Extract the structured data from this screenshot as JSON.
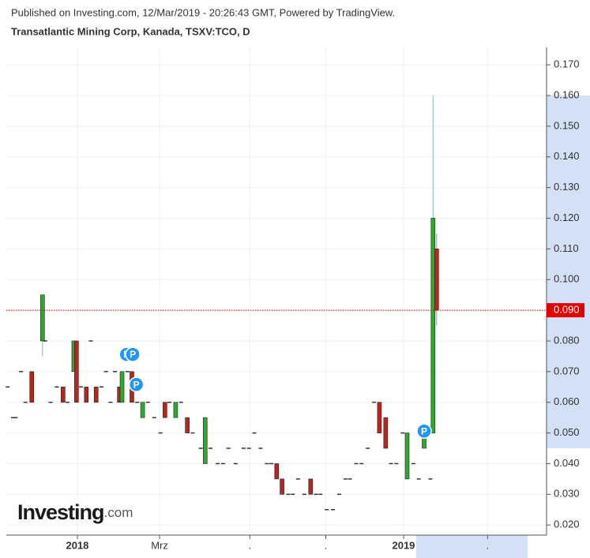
{
  "header": {
    "published": "Published on Investing.com, 12/Mar/2019 - 20:26:43 GMT, Powered by TradingView.",
    "symbol": "Transatlantic Mining Corp, Kanada, TSXV:TCO, D"
  },
  "logo": {
    "name": "Investing",
    "suffix": ".com"
  },
  "chart_data": {
    "type": "candlestick",
    "xlim": [
      -79.5,
      525
    ],
    "ylim": [
      0.0167,
      0.1757
    ],
    "xticks": [
      {
        "value": 0,
        "label": "2018"
      },
      {
        "value": 92,
        "label": "Mrz"
      },
      {
        "value": 193,
        "label": "."
      },
      {
        "value": 278,
        "label": "."
      },
      {
        "value": 365,
        "label": "2019"
      },
      {
        "value": 459,
        "label": "."
      }
    ],
    "yticks": [
      {
        "value": 0.02,
        "label": "0.020"
      },
      {
        "value": 0.03,
        "label": "0.030"
      },
      {
        "value": 0.04,
        "label": "0.040"
      },
      {
        "value": 0.05,
        "label": "0.050"
      },
      {
        "value": 0.06,
        "label": "0.060"
      },
      {
        "value": 0.07,
        "label": "0.070"
      },
      {
        "value": 0.08,
        "label": "0.080"
      },
      {
        "value": 0.09,
        "label": "0.090"
      },
      {
        "value": 0.1,
        "label": "0.100"
      },
      {
        "value": 0.11,
        "label": "0.110"
      },
      {
        "value": 0.12,
        "label": "0.120"
      },
      {
        "value": 0.13,
        "label": "0.130"
      },
      {
        "value": 0.14,
        "label": "0.140"
      },
      {
        "value": 0.15,
        "label": "0.150"
      },
      {
        "value": 0.16,
        "label": "0.160"
      },
      {
        "value": 0.17,
        "label": "0.170"
      }
    ],
    "grid": true,
    "up_color": "#2ea82e",
    "down_color": "#b8261e",
    "x": [
      -78,
      -72,
      -69,
      -63,
      -58,
      -51,
      -39,
      -36,
      -30,
      -23,
      -16,
      -11,
      -4,
      -1,
      4,
      10,
      15,
      21,
      27,
      32,
      37,
      42,
      47,
      50,
      56,
      61,
      67,
      73,
      79,
      86,
      93,
      98,
      103,
      110,
      116,
      123,
      129,
      138,
      143,
      149,
      157,
      163,
      169,
      177,
      186,
      192,
      198,
      205,
      212,
      217,
      223,
      229,
      236,
      241,
      247,
      254,
      261,
      267,
      272,
      279,
      286,
      293,
      300,
      305,
      312,
      318,
      325,
      332,
      338,
      345,
      351,
      357,
      364,
      369,
      376,
      382,
      388,
      395,
      398,
      402
    ],
    "open": [
      0.065,
      0.055,
      0.055,
      0.07,
      0.06,
      0.07,
      0.08,
      0.08,
      0.06,
      0.065,
      0.065,
      0.06,
      0.07,
      0.08,
      0.065,
      0.065,
      0.08,
      0.065,
      0.065,
      0.07,
      0.06,
      0.07,
      0.065,
      0.06,
      0.07,
      0.07,
      0.06,
      0.055,
      0.06,
      0.055,
      0.05,
      0.06,
      0.06,
      0.055,
      0.06,
      0.055,
      0.05,
      0.045,
      0.04,
      0.045,
      0.04,
      0.04,
      0.045,
      0.04,
      0.045,
      0.045,
      0.05,
      0.045,
      0.04,
      0.04,
      0.04,
      0.035,
      0.03,
      0.03,
      0.035,
      0.03,
      0.035,
      0.03,
      0.03,
      0.025,
      0.025,
      0.03,
      0.035,
      0.035,
      0.04,
      0.04,
      0.045,
      0.06,
      0.06,
      0.055,
      0.04,
      0.04,
      0.05,
      0.035,
      0.04,
      0.035,
      0.045,
      0.035,
      0.05,
      0.11
    ],
    "high": [
      0.065,
      0.055,
      0.055,
      0.07,
      0.06,
      0.07,
      0.095,
      0.08,
      0.06,
      0.065,
      0.065,
      0.06,
      0.08,
      0.08,
      0.065,
      0.065,
      0.08,
      0.065,
      0.065,
      0.07,
      0.06,
      0.07,
      0.065,
      0.07,
      0.07,
      0.07,
      0.06,
      0.06,
      0.06,
      0.055,
      0.05,
      0.06,
      0.06,
      0.06,
      0.06,
      0.055,
      0.05,
      0.045,
      0.055,
      0.045,
      0.04,
      0.04,
      0.045,
      0.04,
      0.045,
      0.045,
      0.05,
      0.045,
      0.04,
      0.04,
      0.04,
      0.035,
      0.03,
      0.03,
      0.035,
      0.03,
      0.035,
      0.03,
      0.03,
      0.025,
      0.025,
      0.03,
      0.035,
      0.035,
      0.04,
      0.04,
      0.045,
      0.06,
      0.06,
      0.055,
      0.04,
      0.04,
      0.05,
      0.05,
      0.04,
      0.035,
      0.05,
      0.035,
      0.16,
      0.115
    ],
    "low": [
      0.065,
      0.055,
      0.055,
      0.07,
      0.06,
      0.06,
      0.075,
      0.08,
      0.06,
      0.065,
      0.06,
      0.06,
      0.07,
      0.06,
      0.065,
      0.06,
      0.08,
      0.06,
      0.065,
      0.07,
      0.06,
      0.07,
      0.06,
      0.06,
      0.07,
      0.06,
      0.06,
      0.055,
      0.06,
      0.055,
      0.05,
      0.055,
      0.06,
      0.055,
      0.06,
      0.05,
      0.05,
      0.045,
      0.04,
      0.045,
      0.04,
      0.04,
      0.045,
      0.04,
      0.045,
      0.045,
      0.05,
      0.045,
      0.04,
      0.04,
      0.035,
      0.03,
      0.03,
      0.03,
      0.035,
      0.03,
      0.03,
      0.03,
      0.03,
      0.025,
      0.025,
      0.03,
      0.035,
      0.035,
      0.04,
      0.04,
      0.045,
      0.06,
      0.05,
      0.045,
      0.04,
      0.04,
      0.05,
      0.035,
      0.04,
      0.035,
      0.045,
      0.035,
      0.05,
      0.085
    ],
    "close": [
      0.065,
      0.055,
      0.055,
      0.07,
      0.06,
      0.06,
      0.095,
      0.08,
      0.06,
      0.065,
      0.06,
      0.06,
      0.08,
      0.06,
      0.065,
      0.06,
      0.08,
      0.06,
      0.065,
      0.07,
      0.06,
      0.07,
      0.06,
      0.07,
      0.07,
      0.06,
      0.06,
      0.06,
      0.06,
      0.055,
      0.05,
      0.055,
      0.06,
      0.06,
      0.06,
      0.05,
      0.05,
      0.045,
      0.055,
      0.045,
      0.04,
      0.04,
      0.045,
      0.04,
      0.045,
      0.045,
      0.05,
      0.045,
      0.04,
      0.04,
      0.035,
      0.03,
      0.03,
      0.03,
      0.035,
      0.03,
      0.03,
      0.03,
      0.03,
      0.025,
      0.025,
      0.03,
      0.035,
      0.035,
      0.04,
      0.04,
      0.045,
      0.06,
      0.05,
      0.045,
      0.04,
      0.04,
      0.05,
      0.05,
      0.04,
      0.035,
      0.05,
      0.035,
      0.12,
      0.09
    ],
    "last_price": {
      "value": 0.09,
      "label": "0.090",
      "color": "#e00000"
    },
    "markers": [
      {
        "x": 55,
        "y": 0.0756,
        "label": "P"
      },
      {
        "x": 62,
        "y": 0.0756,
        "label": "P"
      },
      {
        "x": 66,
        "y": 0.0658,
        "label": "P"
      },
      {
        "x": 388,
        "y": 0.0506,
        "label": "P"
      }
    ],
    "highlight_y": [
      0.045,
      0.16
    ],
    "highlight_x": [
      379,
      504
    ],
    "highlight_color": "#d3e0f6"
  }
}
